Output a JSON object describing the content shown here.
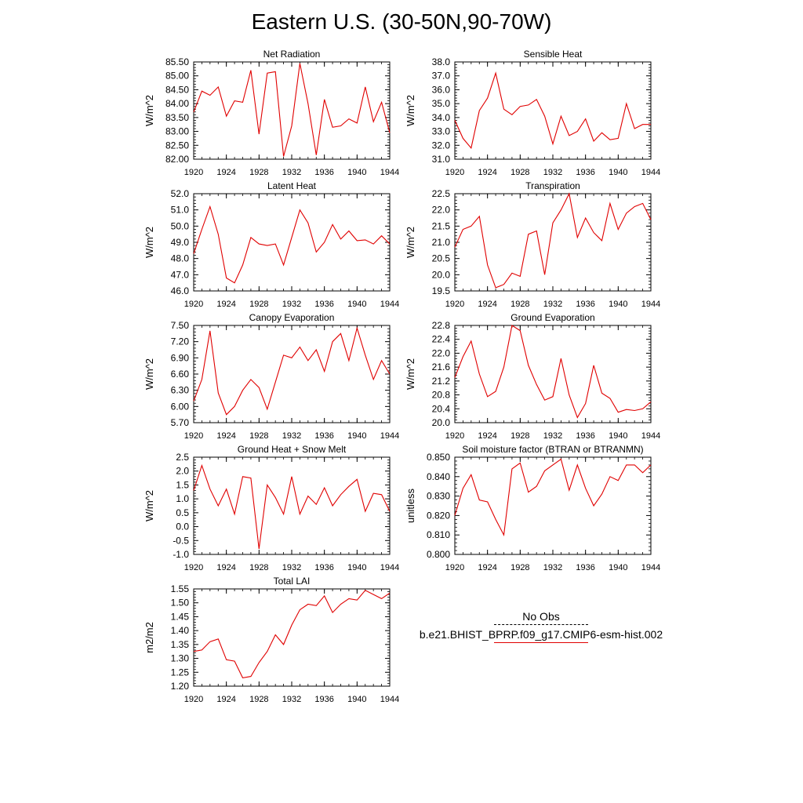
{
  "page_title": "Eastern U.S. (30-50N,90-70W)",
  "legend": {
    "obs_label": "No Obs",
    "model_label": "b.e21.BHIST_BPRP.f09_g17.CMIP6-esm-hist.002",
    "model_color": "#e00000"
  },
  "chart_data": [
    {
      "type": "line",
      "title": "Net Radiation",
      "ylabel": "W/m^2",
      "xlim": [
        1920,
        1944
      ],
      "ylim": [
        82.0,
        85.5
      ],
      "xticks": [
        "1920",
        "1924",
        "1928",
        "1932",
        "1936",
        "1940",
        "1944"
      ],
      "yticks": [
        "82.00",
        "82.50",
        "83.00",
        "83.50",
        "84.00",
        "84.50",
        "85.00",
        "85.50"
      ],
      "x": [
        1920,
        1921,
        1922,
        1923,
        1924,
        1925,
        1926,
        1927,
        1928,
        1929,
        1930,
        1931,
        1932,
        1933,
        1934,
        1935,
        1936,
        1937,
        1938,
        1939,
        1940,
        1941,
        1942,
        1943,
        1944
      ],
      "series": [
        {
          "color": "#e00000",
          "values": [
            83.7,
            84.45,
            84.3,
            84.6,
            83.55,
            84.1,
            84.05,
            85.2,
            82.9,
            85.1,
            85.15,
            82.1,
            83.2,
            85.45,
            84.0,
            82.15,
            84.15,
            83.15,
            83.2,
            83.45,
            83.3,
            84.6,
            83.35,
            84.05,
            82.95
          ]
        }
      ]
    },
    {
      "type": "line",
      "title": "Sensible Heat",
      "ylabel": "W/m^2",
      "xlim": [
        1920,
        1944
      ],
      "ylim": [
        31.0,
        38.0
      ],
      "xticks": [
        "1920",
        "1924",
        "1928",
        "1932",
        "1936",
        "1940",
        "1944"
      ],
      "yticks": [
        "31.0",
        "32.0",
        "33.0",
        "34.0",
        "35.0",
        "36.0",
        "37.0",
        "38.0"
      ],
      "x": [
        1920,
        1921,
        1922,
        1923,
        1924,
        1925,
        1926,
        1927,
        1928,
        1929,
        1930,
        1931,
        1932,
        1933,
        1934,
        1935,
        1936,
        1937,
        1938,
        1939,
        1940,
        1941,
        1942,
        1943,
        1944
      ],
      "series": [
        {
          "color": "#e00000",
          "values": [
            33.8,
            32.5,
            31.8,
            34.5,
            35.4,
            37.2,
            34.6,
            34.2,
            34.8,
            34.9,
            35.3,
            34.1,
            32.1,
            34.1,
            32.7,
            33.0,
            33.9,
            32.3,
            32.9,
            32.4,
            32.5,
            35.0,
            33.2,
            33.5,
            33.5
          ]
        }
      ]
    },
    {
      "type": "line",
      "title": "Latent Heat",
      "ylabel": "W/m^2",
      "xlim": [
        1920,
        1944
      ],
      "ylim": [
        46.0,
        52.0
      ],
      "xticks": [
        "1920",
        "1924",
        "1928",
        "1932",
        "1936",
        "1940",
        "1944"
      ],
      "yticks": [
        "46.0",
        "47.0",
        "48.0",
        "49.0",
        "50.0",
        "51.0",
        "52.0"
      ],
      "x": [
        1920,
        1921,
        1922,
        1923,
        1924,
        1925,
        1926,
        1927,
        1928,
        1929,
        1930,
        1931,
        1932,
        1933,
        1934,
        1935,
        1936,
        1937,
        1938,
        1939,
        1940,
        1941,
        1942,
        1943,
        1944
      ],
      "series": [
        {
          "color": "#e00000",
          "values": [
            48.3,
            49.8,
            51.2,
            49.5,
            46.8,
            46.5,
            47.6,
            49.3,
            48.9,
            48.8,
            48.9,
            47.6,
            49.3,
            51.0,
            50.2,
            48.4,
            49.0,
            50.1,
            49.2,
            49.7,
            49.1,
            49.15,
            48.9,
            49.4,
            48.9
          ]
        }
      ]
    },
    {
      "type": "line",
      "title": "Transpiration",
      "ylabel": "W/m^2",
      "xlim": [
        1920,
        1944
      ],
      "ylim": [
        19.5,
        22.5
      ],
      "xticks": [
        "1920",
        "1924",
        "1928",
        "1932",
        "1936",
        "1940",
        "1944"
      ],
      "yticks": [
        "19.5",
        "20.0",
        "20.5",
        "21.0",
        "21.5",
        "22.0",
        "22.5"
      ],
      "x": [
        1920,
        1921,
        1922,
        1923,
        1924,
        1925,
        1926,
        1927,
        1928,
        1929,
        1930,
        1931,
        1932,
        1933,
        1934,
        1935,
        1936,
        1937,
        1938,
        1939,
        1940,
        1941,
        1942,
        1943,
        1944
      ],
      "series": [
        {
          "color": "#e00000",
          "values": [
            20.85,
            21.4,
            21.5,
            21.8,
            20.3,
            19.6,
            19.7,
            20.05,
            19.95,
            21.25,
            21.35,
            20.0,
            21.6,
            22.0,
            22.5,
            21.15,
            21.75,
            21.3,
            21.05,
            22.2,
            21.4,
            21.9,
            22.1,
            22.2,
            21.7
          ]
        }
      ]
    },
    {
      "type": "line",
      "title": "Canopy Evaporation",
      "ylabel": "W/m^2",
      "xlim": [
        1920,
        1944
      ],
      "ylim": [
        5.7,
        7.5
      ],
      "xticks": [
        "1920",
        "1924",
        "1928",
        "1932",
        "1936",
        "1940",
        "1944"
      ],
      "yticks": [
        "5.70",
        "6.00",
        "6.30",
        "6.60",
        "6.90",
        "7.20",
        "7.50"
      ],
      "x": [
        1920,
        1921,
        1922,
        1923,
        1924,
        1925,
        1926,
        1927,
        1928,
        1929,
        1930,
        1931,
        1932,
        1933,
        1934,
        1935,
        1936,
        1937,
        1938,
        1939,
        1940,
        1941,
        1942,
        1943,
        1944
      ],
      "series": [
        {
          "color": "#e00000",
          "values": [
            6.1,
            6.5,
            7.4,
            6.25,
            5.85,
            6.0,
            6.3,
            6.5,
            6.35,
            5.95,
            6.45,
            6.95,
            6.9,
            7.1,
            6.85,
            7.05,
            6.65,
            7.2,
            7.35,
            6.85,
            7.45,
            6.95,
            6.5,
            6.85,
            6.6
          ]
        }
      ]
    },
    {
      "type": "line",
      "title": "Ground Evaporation",
      "ylabel": "W/m^2",
      "xlim": [
        1920,
        1944
      ],
      "ylim": [
        20.0,
        22.8
      ],
      "xticks": [
        "1920",
        "1924",
        "1928",
        "1932",
        "1936",
        "1940",
        "1944"
      ],
      "yticks": [
        "20.0",
        "20.4",
        "20.8",
        "21.2",
        "21.6",
        "22.0",
        "22.4",
        "22.8"
      ],
      "x": [
        1920,
        1921,
        1922,
        1923,
        1924,
        1925,
        1926,
        1927,
        1928,
        1929,
        1930,
        1931,
        1932,
        1933,
        1934,
        1935,
        1936,
        1937,
        1938,
        1939,
        1940,
        1941,
        1942,
        1943,
        1944
      ],
      "series": [
        {
          "color": "#e00000",
          "values": [
            21.3,
            21.9,
            22.35,
            21.4,
            20.75,
            20.9,
            21.6,
            22.8,
            22.65,
            21.65,
            21.1,
            20.65,
            20.75,
            21.85,
            20.8,
            20.15,
            20.55,
            21.65,
            20.85,
            20.7,
            20.3,
            20.38,
            20.35,
            20.4,
            20.6
          ]
        }
      ]
    },
    {
      "type": "line",
      "title": "Ground Heat + Snow Melt",
      "ylabel": "W/m^2",
      "xlim": [
        1920,
        1944
      ],
      "ylim": [
        -1.0,
        2.5
      ],
      "xticks": [
        "1920",
        "1924",
        "1928",
        "1932",
        "1936",
        "1940",
        "1944"
      ],
      "yticks": [
        "-1.0",
        "-0.5",
        "0.0",
        "0.5",
        "1.0",
        "1.5",
        "2.0",
        "2.5"
      ],
      "x": [
        1920,
        1921,
        1922,
        1923,
        1924,
        1925,
        1926,
        1927,
        1928,
        1929,
        1930,
        1931,
        1932,
        1933,
        1934,
        1935,
        1936,
        1937,
        1938,
        1939,
        1940,
        1941,
        1942,
        1943,
        1944
      ],
      "series": [
        {
          "color": "#e00000",
          "values": [
            1.3,
            2.2,
            1.35,
            0.75,
            1.35,
            0.45,
            1.8,
            1.75,
            -0.8,
            1.5,
            1.05,
            0.45,
            1.8,
            0.45,
            1.1,
            0.8,
            1.4,
            0.75,
            1.15,
            1.45,
            1.7,
            0.55,
            1.2,
            1.15,
            0.55
          ]
        }
      ]
    },
    {
      "type": "line",
      "title": "Soil moisture factor (BTRAN or BTRANMN)",
      "ylabel": "unitless",
      "xlim": [
        1920,
        1944
      ],
      "ylim": [
        0.8,
        0.85
      ],
      "xticks": [
        "1920",
        "1924",
        "1928",
        "1932",
        "1936",
        "1940",
        "1944"
      ],
      "yticks": [
        "0.800",
        "0.810",
        "0.820",
        "0.830",
        "0.840",
        "0.850"
      ],
      "x": [
        1920,
        1921,
        1922,
        1923,
        1924,
        1925,
        1926,
        1927,
        1928,
        1929,
        1930,
        1931,
        1932,
        1933,
        1934,
        1935,
        1936,
        1937,
        1938,
        1939,
        1940,
        1941,
        1942,
        1943,
        1944
      ],
      "series": [
        {
          "color": "#e00000",
          "values": [
            0.82,
            0.834,
            0.841,
            0.828,
            0.827,
            0.818,
            0.81,
            0.844,
            0.847,
            0.832,
            0.835,
            0.843,
            0.846,
            0.849,
            0.833,
            0.846,
            0.834,
            0.825,
            0.831,
            0.84,
            0.838,
            0.846,
            0.846,
            0.842,
            0.846
          ]
        }
      ]
    },
    {
      "type": "line",
      "title": "Total LAI",
      "ylabel": "m2/m2",
      "xlim": [
        1920,
        1944
      ],
      "ylim": [
        1.2,
        1.55
      ],
      "xticks": [
        "1920",
        "1924",
        "1928",
        "1932",
        "1936",
        "1940",
        "1944"
      ],
      "yticks": [
        "1.20",
        "1.25",
        "1.30",
        "1.35",
        "1.40",
        "1.45",
        "1.50",
        "1.55"
      ],
      "x": [
        1920,
        1921,
        1922,
        1923,
        1924,
        1925,
        1926,
        1927,
        1928,
        1929,
        1930,
        1931,
        1932,
        1933,
        1934,
        1935,
        1936,
        1937,
        1938,
        1939,
        1940,
        1941,
        1942,
        1943,
        1944
      ],
      "series": [
        {
          "color": "#e00000",
          "values": [
            1.325,
            1.33,
            1.36,
            1.37,
            1.295,
            1.29,
            1.23,
            1.235,
            1.285,
            1.325,
            1.385,
            1.35,
            1.42,
            1.475,
            1.495,
            1.49,
            1.525,
            1.465,
            1.495,
            1.515,
            1.51,
            1.545,
            1.53,
            1.515,
            1.535
          ]
        }
      ]
    }
  ]
}
